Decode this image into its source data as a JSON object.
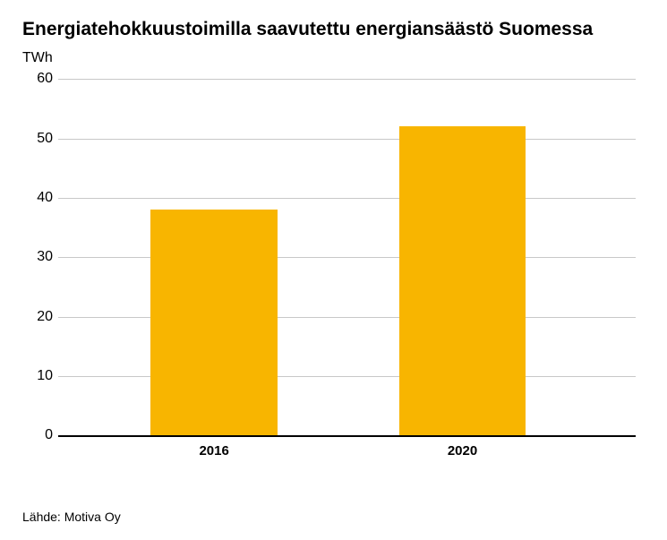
{
  "chart": {
    "type": "bar",
    "title": "Energiatehokkuustoimilla saavutettu energiansäästö Suomessa",
    "unit_label": "TWh",
    "source_label": "Lähde: Motiva Oy",
    "categories": [
      "2016",
      "2020"
    ],
    "values": [
      38,
      52
    ],
    "bar_colors": [
      "#f8b500",
      "#f8b500"
    ],
    "ylim": [
      0,
      60
    ],
    "yticks": [
      0,
      10,
      20,
      30,
      40,
      50,
      60
    ],
    "background_color": "#ffffff",
    "grid_color": "#c8c8c8",
    "axis_color": "#000000",
    "text_color": "#000000",
    "title_fontsize": 21,
    "title_fontweight": 900,
    "label_fontsize": 16,
    "xlabel_fontsize": 15,
    "xlabel_fontweight": 700,
    "bar_width_pct": 22,
    "bar_positions_pct": [
      27,
      70
    ]
  }
}
